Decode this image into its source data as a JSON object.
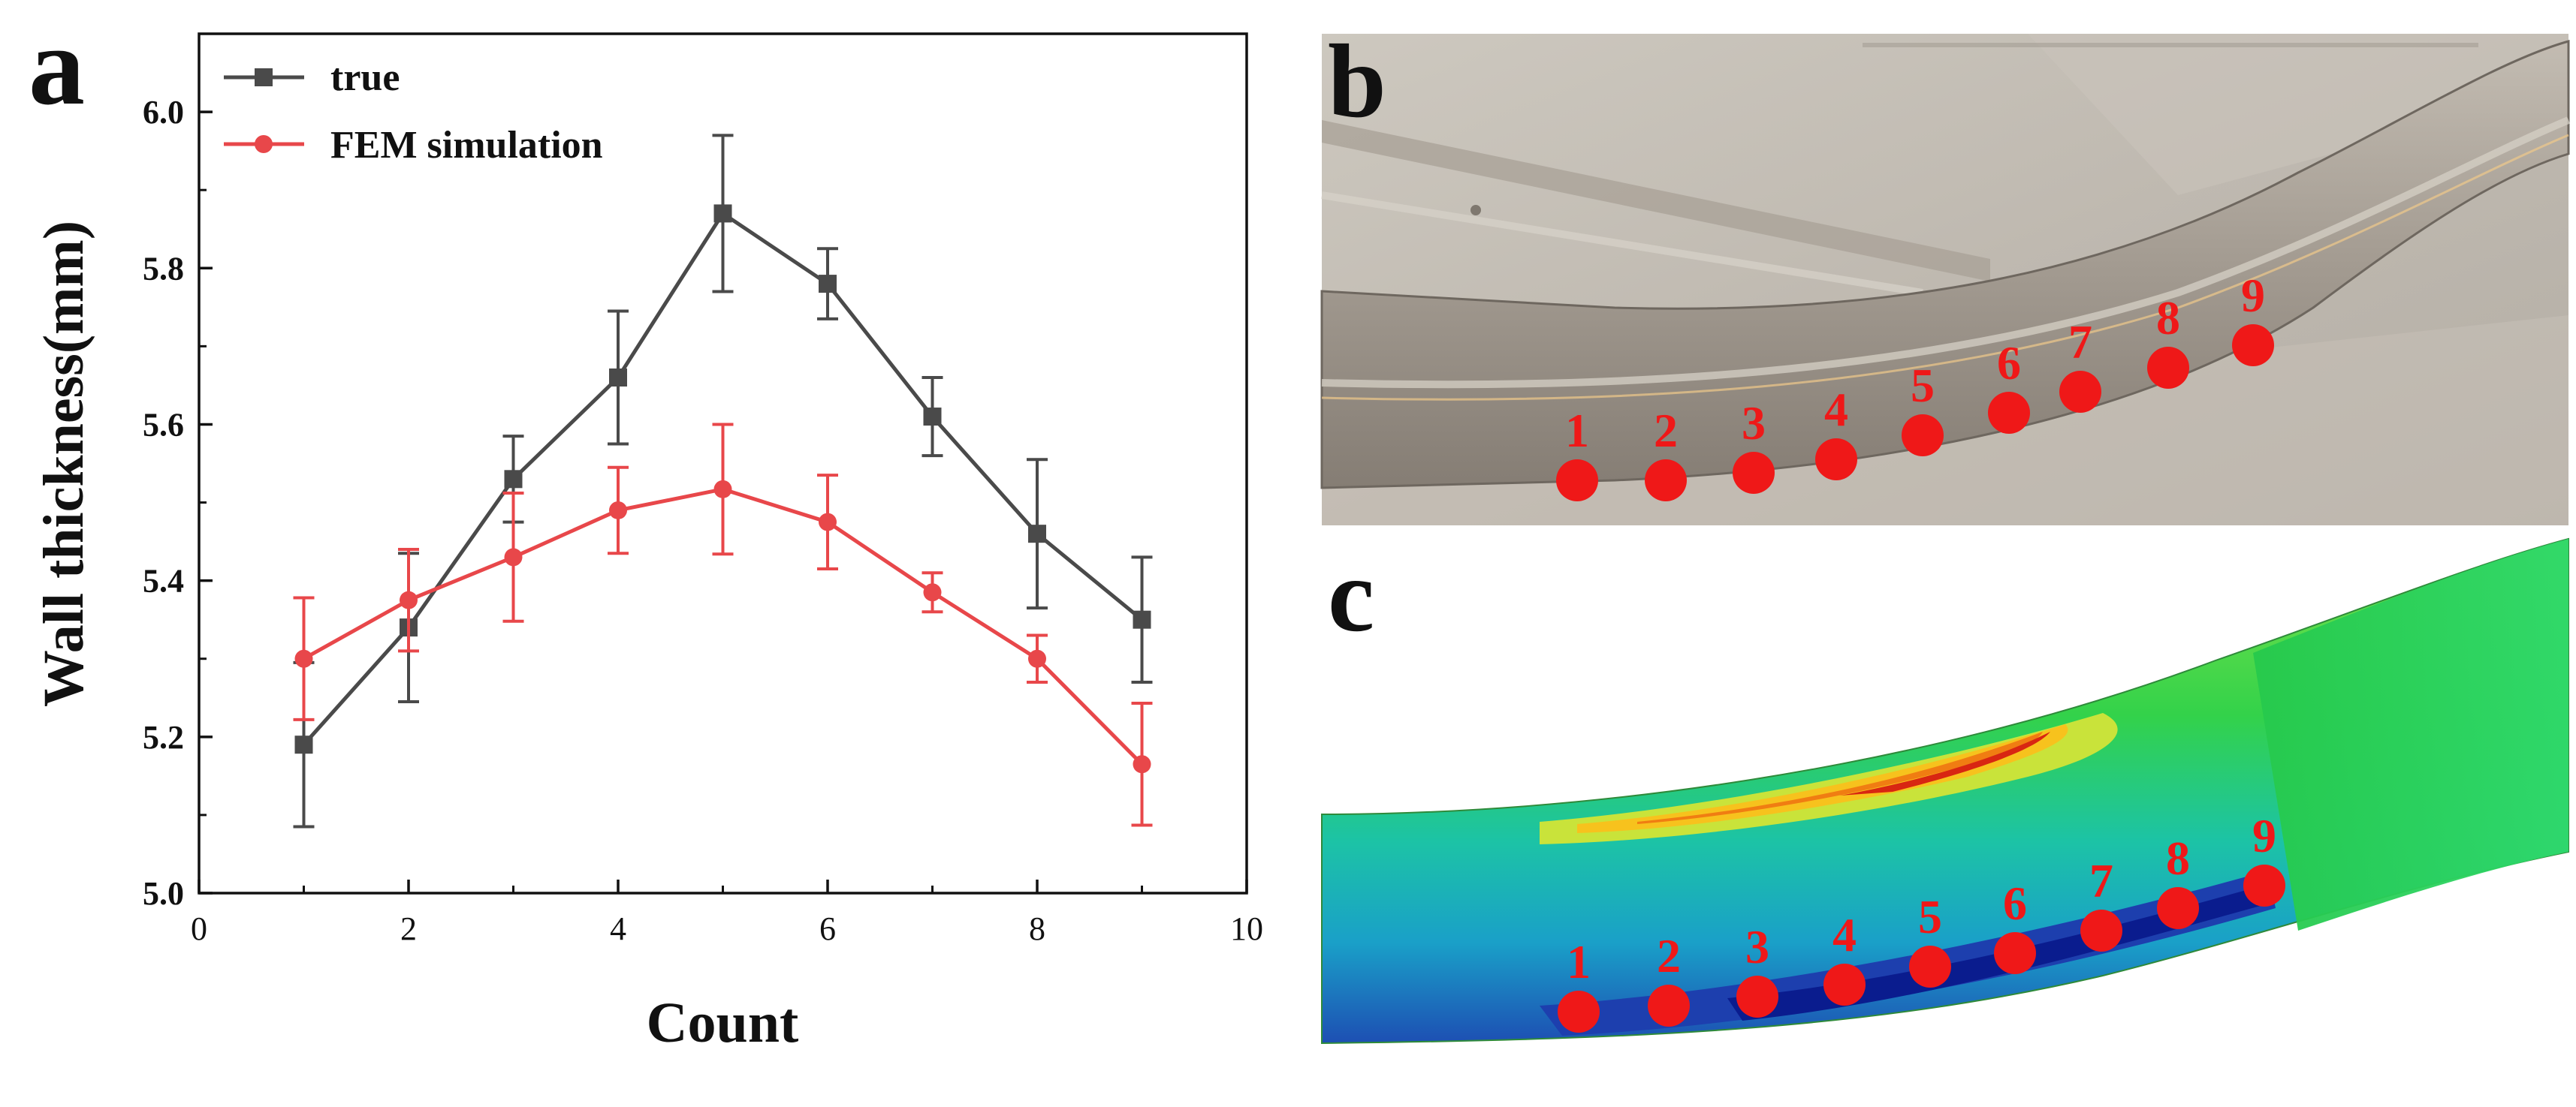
{
  "panel_letters": {
    "a": "a",
    "b": "b",
    "c": "c"
  },
  "chart_data": {
    "type": "line",
    "xlabel": "Count",
    "ylabel": "Wall thickness(mm)",
    "xlim": [
      0,
      10
    ],
    "ylim": [
      5.0,
      6.1
    ],
    "x_ticks": [
      0,
      2,
      4,
      6,
      8,
      10
    ],
    "x_tick_labels": [
      "0",
      "2",
      "4",
      "6",
      "8",
      "10"
    ],
    "y_ticks": [
      5.0,
      5.2,
      5.4,
      5.6,
      5.8,
      6.0
    ],
    "y_tick_labels": [
      "5.0",
      "5.2",
      "5.4",
      "5.6",
      "5.8",
      "6.0"
    ],
    "legend_position": "top-left",
    "grid": false,
    "x": [
      1,
      2,
      3,
      4,
      5,
      6,
      7,
      8,
      9
    ],
    "series": [
      {
        "name": "true",
        "marker": "square",
        "color": "#4a4a4a",
        "values": [
          5.19,
          5.34,
          5.53,
          5.66,
          5.87,
          5.78,
          5.61,
          5.46,
          5.35
        ],
        "errors": [
          0.105,
          0.095,
          0.055,
          0.085,
          0.1,
          0.045,
          0.05,
          0.095,
          0.08
        ]
      },
      {
        "name": "FEM simulation",
        "marker": "circle",
        "color": "#e8474a",
        "values": [
          5.3,
          5.375,
          5.43,
          5.49,
          5.517,
          5.475,
          5.385,
          5.3,
          5.165
        ],
        "errors": [
          0.078,
          0.065,
          0.082,
          0.055,
          0.083,
          0.06,
          0.025,
          0.03,
          0.078
        ]
      }
    ]
  },
  "marker_points": {
    "labels": [
      "1",
      "2",
      "3",
      "4",
      "5",
      "6",
      "7",
      "8",
      "9"
    ],
    "color": "#ef1818"
  }
}
